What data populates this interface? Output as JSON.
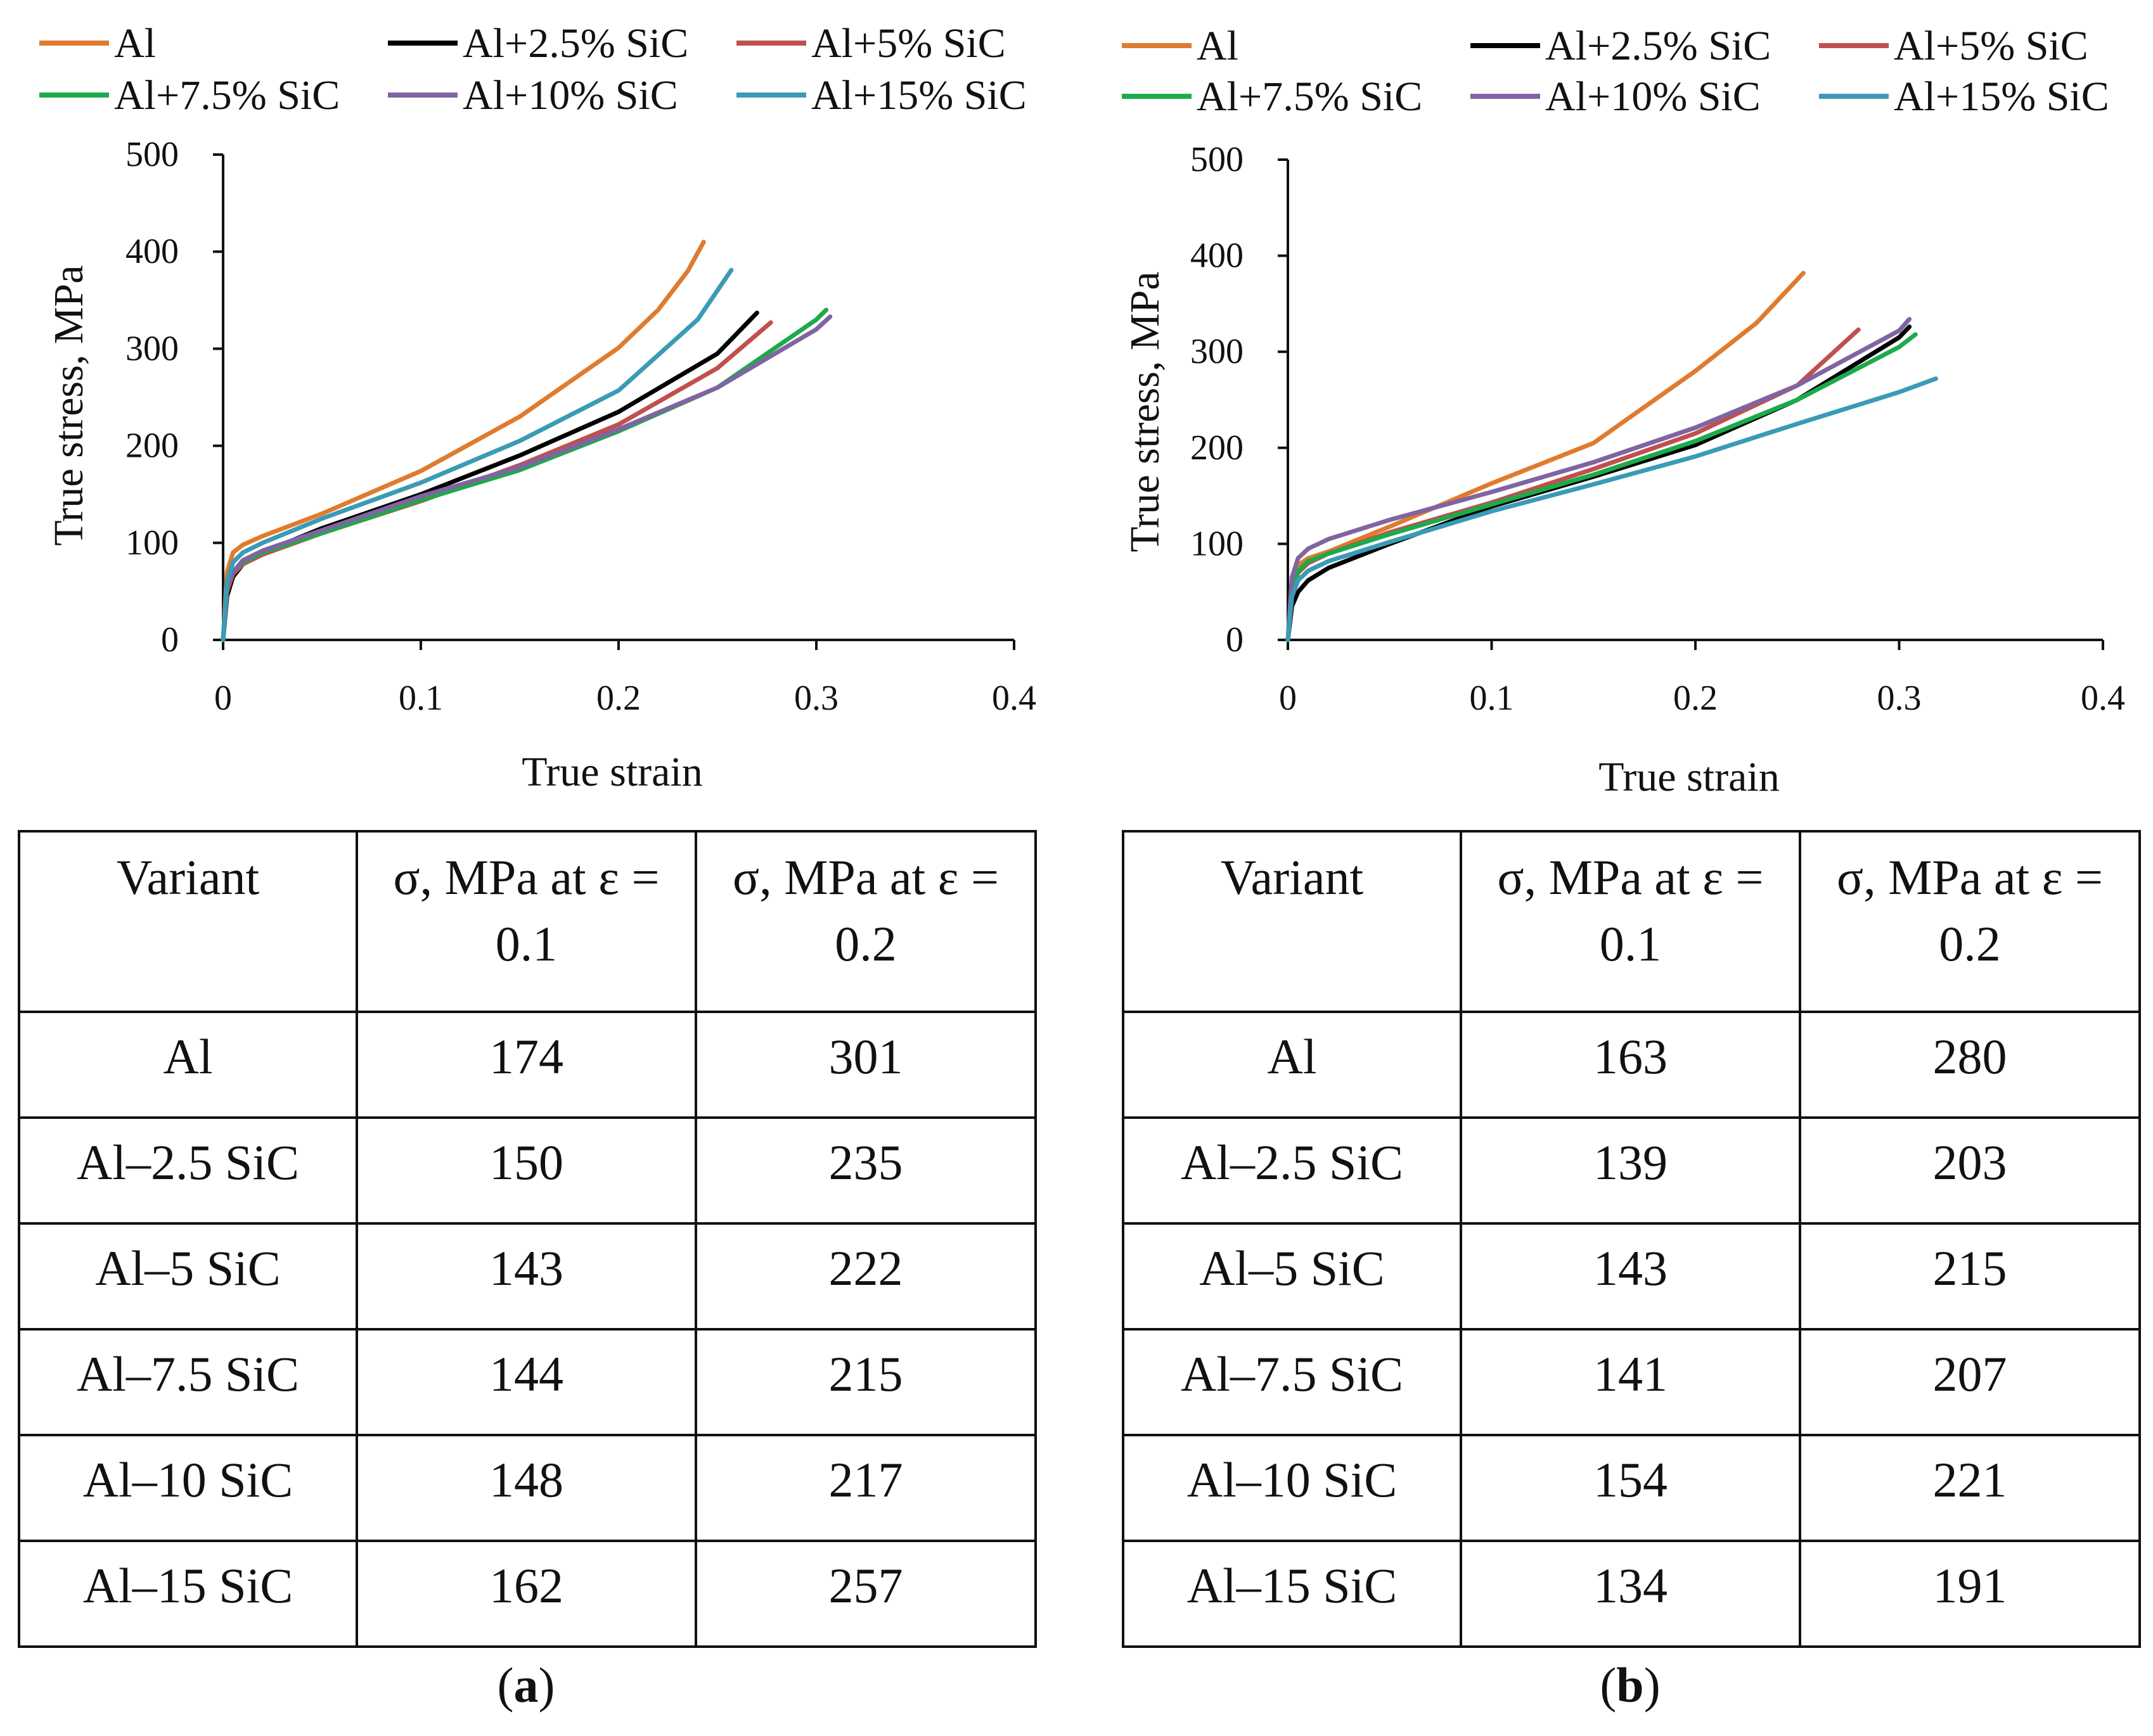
{
  "chart_data": [
    {
      "type": "line",
      "panel_label": "a",
      "xlabel": "True strain",
      "ylabel": "True stress, MPa",
      "xlim": [
        0,
        0.4
      ],
      "ylim": [
        0,
        500
      ],
      "xticks": [
        "0",
        "0.1",
        "0.2",
        "0.3",
        "0.4"
      ],
      "yticks": [
        "0",
        "100",
        "200",
        "300",
        "400",
        "500"
      ],
      "legend_position": "top",
      "series": [
        {
          "name": "Al",
          "color": "#E07B2E",
          "x": [
            0,
            0.002,
            0.005,
            0.01,
            0.02,
            0.05,
            0.1,
            0.15,
            0.2,
            0.22,
            0.235,
            0.243
          ],
          "y": [
            0,
            70,
            90,
            98,
            107,
            130,
            174,
            230,
            301,
            340,
            380,
            410
          ]
        },
        {
          "name": "Al+2.5% SiC",
          "color": "#000000",
          "x": [
            0,
            0.002,
            0.005,
            0.01,
            0.02,
            0.05,
            0.1,
            0.15,
            0.2,
            0.25,
            0.27
          ],
          "y": [
            0,
            45,
            65,
            78,
            90,
            115,
            150,
            190,
            235,
            295,
            337
          ]
        },
        {
          "name": "Al+5% SiC",
          "color": "#C0504D",
          "x": [
            0,
            0.002,
            0.005,
            0.01,
            0.02,
            0.05,
            0.1,
            0.15,
            0.2,
            0.25,
            0.277
          ],
          "y": [
            0,
            50,
            68,
            78,
            88,
            110,
            143,
            180,
            222,
            280,
            327
          ]
        },
        {
          "name": "Al+7.5% SiC",
          "color": "#1DAA4B",
          "x": [
            0,
            0.002,
            0.005,
            0.01,
            0.02,
            0.05,
            0.1,
            0.15,
            0.2,
            0.25,
            0.3,
            0.305
          ],
          "y": [
            0,
            55,
            70,
            80,
            90,
            110,
            144,
            175,
            215,
            260,
            330,
            340
          ]
        },
        {
          "name": "Al+10% SiC",
          "color": "#8064A2",
          "x": [
            0,
            0.002,
            0.005,
            0.01,
            0.02,
            0.05,
            0.1,
            0.15,
            0.2,
            0.25,
            0.3,
            0.307
          ],
          "y": [
            0,
            55,
            70,
            82,
            92,
            113,
            148,
            178,
            217,
            260,
            320,
            333
          ]
        },
        {
          "name": "Al+15% SiC",
          "color": "#3A9BB5",
          "x": [
            0,
            0.002,
            0.005,
            0.01,
            0.02,
            0.05,
            0.1,
            0.15,
            0.2,
            0.24,
            0.257
          ],
          "y": [
            0,
            60,
            80,
            90,
            100,
            125,
            162,
            205,
            257,
            330,
            381
          ]
        }
      ]
    },
    {
      "type": "line",
      "panel_label": "b",
      "xlabel": "True strain",
      "ylabel": "True stress, MPa",
      "xlim": [
        0,
        0.4
      ],
      "ylim": [
        0,
        500
      ],
      "xticks": [
        "0",
        "0.1",
        "0.2",
        "0.3",
        "0.4"
      ],
      "yticks": [
        "0",
        "100",
        "200",
        "300",
        "400",
        "500"
      ],
      "legend_position": "top",
      "series": [
        {
          "name": "Al",
          "color": "#E07B2E",
          "x": [
            0,
            0.002,
            0.005,
            0.01,
            0.02,
            0.05,
            0.1,
            0.15,
            0.2,
            0.23,
            0.253
          ],
          "y": [
            0,
            60,
            78,
            85,
            92,
            118,
            163,
            205,
            280,
            330,
            382
          ]
        },
        {
          "name": "Al+2.5% SiC",
          "color": "#000000",
          "x": [
            0,
            0.002,
            0.005,
            0.01,
            0.02,
            0.05,
            0.1,
            0.15,
            0.2,
            0.25,
            0.3,
            0.305
          ],
          "y": [
            0,
            35,
            50,
            62,
            75,
            100,
            139,
            170,
            203,
            250,
            315,
            326
          ]
        },
        {
          "name": "Al+5% SiC",
          "color": "#C0504D",
          "x": [
            0,
            0.002,
            0.005,
            0.01,
            0.02,
            0.05,
            0.1,
            0.15,
            0.2,
            0.25,
            0.28
          ],
          "y": [
            0,
            50,
            70,
            80,
            90,
            112,
            143,
            178,
            215,
            265,
            323
          ]
        },
        {
          "name": "Al+7.5% SiC",
          "color": "#1DAA4B",
          "x": [
            0,
            0.002,
            0.005,
            0.01,
            0.02,
            0.05,
            0.1,
            0.15,
            0.2,
            0.25,
            0.3,
            0.308
          ],
          "y": [
            0,
            55,
            72,
            82,
            90,
            110,
            141,
            172,
            207,
            250,
            305,
            318
          ]
        },
        {
          "name": "Al+10% SiC",
          "color": "#8064A2",
          "x": [
            0,
            0.002,
            0.005,
            0.01,
            0.02,
            0.05,
            0.1,
            0.15,
            0.2,
            0.25,
            0.3,
            0.305
          ],
          "y": [
            0,
            65,
            85,
            95,
            105,
            125,
            154,
            185,
            221,
            265,
            322,
            334
          ]
        },
        {
          "name": "Al+15% SiC",
          "color": "#3A9BB5",
          "x": [
            0,
            0.002,
            0.005,
            0.01,
            0.02,
            0.05,
            0.1,
            0.15,
            0.2,
            0.25,
            0.3,
            0.318
          ],
          "y": [
            0,
            45,
            62,
            72,
            82,
            102,
            134,
            162,
            191,
            225,
            258,
            272
          ]
        }
      ]
    }
  ],
  "tables": [
    {
      "headers": [
        "Variant",
        "σ, MPa at ε = 0.1",
        "σ, MPa at ε = 0.2"
      ],
      "rows": [
        [
          "Al",
          "174",
          "301"
        ],
        [
          "Al–2.5 SiC",
          "150",
          "235"
        ],
        [
          "Al–5 SiC",
          "143",
          "222"
        ],
        [
          "Al–7.5 SiC",
          "144",
          "215"
        ],
        [
          "Al–10 SiC",
          "148",
          "217"
        ],
        [
          "Al–15 SiC",
          "162",
          "257"
        ]
      ]
    },
    {
      "headers": [
        "Variant",
        "σ, MPa at ε = 0.1",
        "σ, MPa at ε = 0.2"
      ],
      "rows": [
        [
          "Al",
          "163",
          "280"
        ],
        [
          "Al–2.5 SiC",
          "139",
          "203"
        ],
        [
          "Al–5 SiC",
          "143",
          "215"
        ],
        [
          "Al–7.5 SiC",
          "141",
          "207"
        ],
        [
          "Al–10 SiC",
          "154",
          "221"
        ],
        [
          "Al–15 SiC",
          "134",
          "191"
        ]
      ]
    }
  ],
  "captions": [
    {
      "open": "(",
      "label": "a",
      "close": ")"
    },
    {
      "open": "(",
      "label": "b",
      "close": ")"
    }
  ]
}
